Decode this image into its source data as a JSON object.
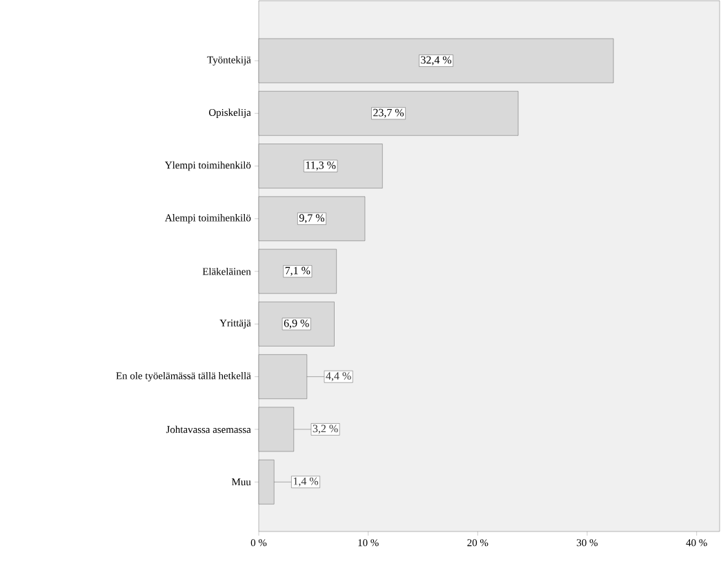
{
  "chart_data": {
    "type": "bar",
    "orientation": "horizontal",
    "categories": [
      "Työntekijä",
      "Opiskelija",
      "Ylempi toimihenkilö",
      "Alempi toimihenkilö",
      "Eläkeläinen",
      "Yrittäjä",
      "En ole työelämässä tällä hetkellä",
      "Johtavassa asemassa",
      "Muu"
    ],
    "values": [
      32.4,
      23.7,
      11.3,
      9.7,
      7.1,
      6.9,
      4.4,
      3.2,
      1.4
    ],
    "value_labels": [
      "32,4 %",
      "23,7 %",
      "11,3 %",
      "9,7 %",
      "7,1 %",
      "6,9 %",
      "4,4 %",
      "3,2 %",
      "1,4 %"
    ],
    "color": "#d9d9d9",
    "xlim": [
      0,
      42.1
    ],
    "xticks": [
      {
        "value": 0,
        "label": "0 %"
      },
      {
        "value": 10,
        "label": "10 %"
      },
      {
        "value": 20,
        "label": "20 %"
      },
      {
        "value": 30,
        "label": "30 %"
      },
      {
        "value": 40,
        "label": "40 %"
      }
    ]
  }
}
